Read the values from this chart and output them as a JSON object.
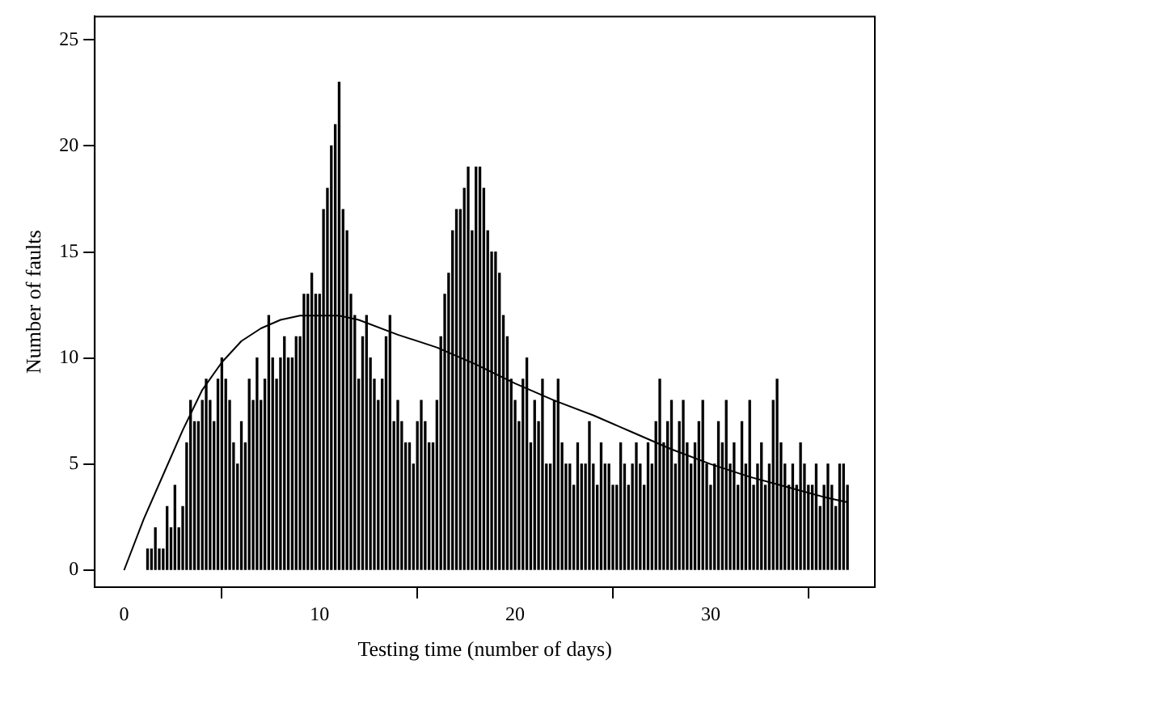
{
  "chart_data": {
    "type": "bar",
    "xlabel": "Testing time (number of days)",
    "ylabel": "Number of faults",
    "xlim": [
      -1.5,
      38.4
    ],
    "xticks": [
      0,
      10,
      20,
      30
    ],
    "ylim": [
      -0.8,
      26.1
    ],
    "yticks": [
      0,
      5,
      10,
      15,
      20,
      25
    ],
    "series": [
      {
        "color": "#000000",
        "x": [
          1.2,
          1.4,
          1.6,
          1.8,
          2.0,
          2.2,
          2.4,
          2.6,
          2.8,
          3.0,
          3.2,
          3.4,
          3.6,
          3.8,
          4.0,
          4.2,
          4.4,
          4.6,
          4.8,
          5.0,
          5.2,
          5.4,
          5.6,
          5.8,
          6.0,
          6.2,
          6.4,
          6.6,
          6.8,
          7.0,
          7.2,
          7.4,
          7.6,
          7.8,
          8.0,
          8.2,
          8.4,
          8.6,
          8.8,
          9.0,
          9.2,
          9.4,
          9.6,
          9.8,
          10.0,
          10.2,
          10.4,
          10.6,
          10.8,
          11.0,
          11.2,
          11.4,
          11.6,
          11.8,
          12.0,
          12.2,
          12.4,
          12.6,
          12.8,
          13.0,
          13.2,
          13.4,
          13.6,
          13.8,
          14.0,
          14.2,
          14.4,
          14.6,
          14.8,
          15.0,
          15.2,
          15.4,
          15.6,
          15.8,
          16.0,
          16.2,
          16.4,
          16.6,
          16.8,
          17.0,
          17.2,
          17.4,
          17.6,
          17.8,
          18.0,
          18.2,
          18.4,
          18.6,
          18.8,
          19.0,
          19.2,
          19.4,
          19.6,
          19.8,
          20.0,
          20.2,
          20.4,
          20.6,
          20.8,
          21.0,
          21.2,
          21.4,
          21.6,
          21.8,
          22.0,
          22.2,
          22.4,
          22.6,
          22.8,
          23.0,
          23.2,
          23.4,
          23.6,
          23.8,
          24.0,
          24.2,
          24.4,
          24.6,
          24.8,
          25.0,
          25.2,
          25.4,
          25.6,
          25.8,
          26.0,
          26.2,
          26.4,
          26.6,
          26.8,
          27.0,
          27.2,
          27.4,
          27.6,
          27.8,
          28.0,
          28.2,
          28.4,
          28.6,
          28.8,
          29.0,
          29.2,
          29.4,
          29.6,
          29.8,
          30.0,
          30.2,
          30.4,
          30.6,
          30.8,
          31.0,
          31.2,
          31.4,
          31.6,
          31.8,
          32.0,
          32.2,
          32.4,
          32.6,
          32.8,
          33.0,
          33.2,
          33.4,
          33.6,
          33.8,
          34.0,
          34.2,
          34.4,
          34.6,
          34.8,
          35.0,
          35.2,
          35.4,
          35.6,
          35.8,
          36.0,
          36.2,
          36.4,
          36.6,
          36.8,
          37.0
        ],
        "values": [
          1,
          1,
          2,
          1,
          1,
          3,
          2,
          4,
          2,
          3,
          6,
          8,
          7,
          7,
          8,
          9,
          8,
          7,
          9,
          10,
          9,
          8,
          6,
          5,
          7,
          6,
          9,
          8,
          10,
          8,
          9,
          12,
          10,
          9,
          10,
          11,
          10,
          10,
          11,
          11,
          13,
          13,
          14,
          13,
          13,
          17,
          18,
          20,
          21,
          23,
          17,
          16,
          13,
          12,
          9,
          11,
          12,
          10,
          9,
          8,
          9,
          11,
          12,
          7,
          8,
          7,
          6,
          6,
          5,
          7,
          8,
          7,
          6,
          6,
          8,
          11,
          13,
          14,
          16,
          17,
          17,
          18,
          19,
          16,
          19,
          19,
          18,
          16,
          15,
          15,
          14,
          12,
          11,
          9,
          8,
          7,
          9,
          10,
          6,
          8,
          7,
          9,
          5,
          5,
          8,
          9,
          6,
          5,
          5,
          4,
          6,
          5,
          5,
          7,
          5,
          4,
          6,
          5,
          5,
          4,
          4,
          6,
          5,
          4,
          5,
          6,
          5,
          4,
          6,
          5,
          7,
          9,
          6,
          7,
          8,
          5,
          7,
          8,
          6,
          5,
          6,
          7,
          8,
          5,
          4,
          5,
          7,
          6,
          8,
          5,
          6,
          4,
          7,
          5,
          8,
          4,
          5,
          6,
          4,
          5,
          8,
          9,
          6,
          5,
          4,
          5,
          4,
          6,
          5,
          4,
          4,
          5,
          3,
          4,
          5,
          4,
          3,
          5,
          5,
          4
        ]
      },
      {
        "type": "line",
        "color": "#000000",
        "x": [
          0,
          1,
          2,
          3,
          4,
          5,
          6,
          7,
          8,
          9,
          10,
          11,
          12,
          14,
          16,
          18,
          20,
          22,
          24,
          26,
          28,
          30,
          32,
          34,
          36,
          37
        ],
        "values": [
          0,
          2.4,
          4.5,
          6.6,
          8.5,
          9.8,
          10.8,
          11.4,
          11.8,
          12,
          12,
          12,
          11.8,
          11.1,
          10.5,
          9.7,
          8.8,
          8,
          7.3,
          6.5,
          5.7,
          5,
          4.4,
          3.9,
          3.4,
          3.2
        ]
      }
    ]
  }
}
